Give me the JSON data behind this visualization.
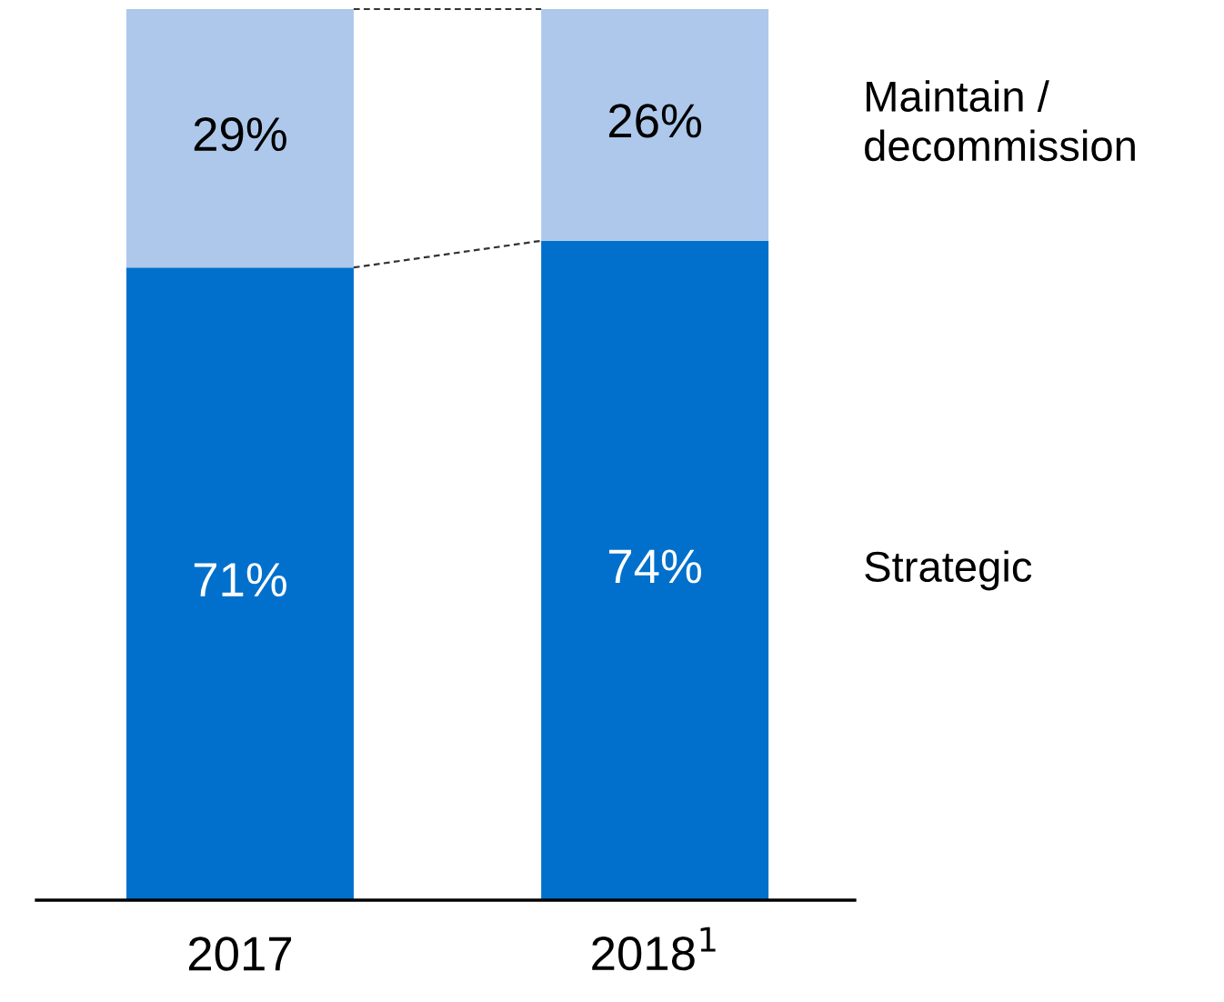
{
  "chart_data": {
    "type": "bar",
    "stacked": true,
    "categories": [
      "2017",
      "2018$^{1}$"
    ],
    "series": [
      {
        "name": "Strategic",
        "color": "#0070cc",
        "values": [
          71,
          74
        ],
        "value_labels": [
          "71%",
          "74%"
        ]
      },
      {
        "name": "Maintain / decommission",
        "color": "#adc8eb",
        "values": [
          29,
          26
        ],
        "value_labels": [
          "29%",
          "26%"
        ]
      }
    ],
    "legend": "right",
    "grid": false
  }
}
